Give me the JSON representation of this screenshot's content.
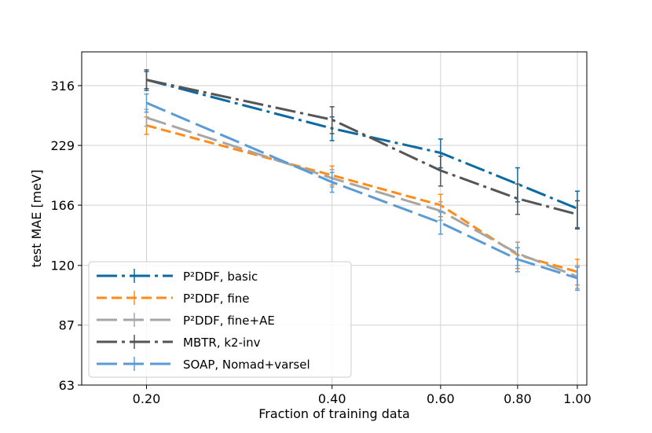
{
  "chart_data": {
    "type": "line",
    "title": "",
    "xlabel": "Fraction of training data",
    "ylabel": "test MAE [meV]",
    "xscale": "log",
    "yscale": "log",
    "xlim": [
      0.157,
      1.036
    ],
    "ylim": [
      63,
      379
    ],
    "xticks": [
      0.2,
      0.4,
      0.6,
      0.8,
      1.0
    ],
    "xtick_labels": [
      "0.20",
      "0.40",
      "0.60",
      "0.80",
      "1.00"
    ],
    "yticks": [
      63,
      87,
      120,
      166,
      229,
      316
    ],
    "ytick_labels": [
      "63",
      "87",
      "120",
      "166",
      "229",
      "316"
    ],
    "grid": true,
    "legend_position": "lower-left",
    "series": [
      {
        "name": "P²DDF, basic",
        "color": "#0b6aa2",
        "dash": "longdash-dot",
        "x": [
          0.2,
          0.4,
          0.6,
          0.8,
          1.0
        ],
        "y": [
          326,
          251,
          220,
          186,
          163
        ],
        "yerr": [
          15,
          16,
          17,
          17,
          16
        ]
      },
      {
        "name": "P²DDF, fine",
        "color": "#ff8c1a",
        "dash": "dashed",
        "x": [
          0.2,
          0.4,
          0.6,
          0.8,
          1.0
        ],
        "y": [
          255,
          195,
          166,
          127,
          116
        ],
        "yerr": [
          12,
          10,
          10,
          9,
          8
        ]
      },
      {
        "name": "P²DDF, fine+AE",
        "color": "#a6a6a6",
        "dash": "longdash",
        "x": [
          0.2,
          0.4,
          0.6,
          0.8,
          1.0
        ],
        "y": [
          266,
          192,
          161,
          128,
          113
        ],
        "yerr": [
          12,
          9,
          8,
          8,
          7
        ]
      },
      {
        "name": "MBTR, k2-inv",
        "color": "#555555",
        "dash": "longdash-dot",
        "x": [
          0.2,
          0.4,
          0.6,
          0.8,
          1.0
        ],
        "y": [
          326,
          263,
          200,
          172,
          158
        ],
        "yerr": [
          18,
          19,
          16,
          14,
          12
        ]
      },
      {
        "name": "SOAP, Nomad+varsel",
        "color": "#5b9bd5",
        "dash": "longdash",
        "x": [
          0.2,
          0.4,
          0.6,
          0.8,
          1.0
        ],
        "y": [
          288,
          188,
          151,
          124,
          112
        ],
        "yerr": [
          14,
          10,
          9,
          8,
          7
        ]
      }
    ]
  }
}
